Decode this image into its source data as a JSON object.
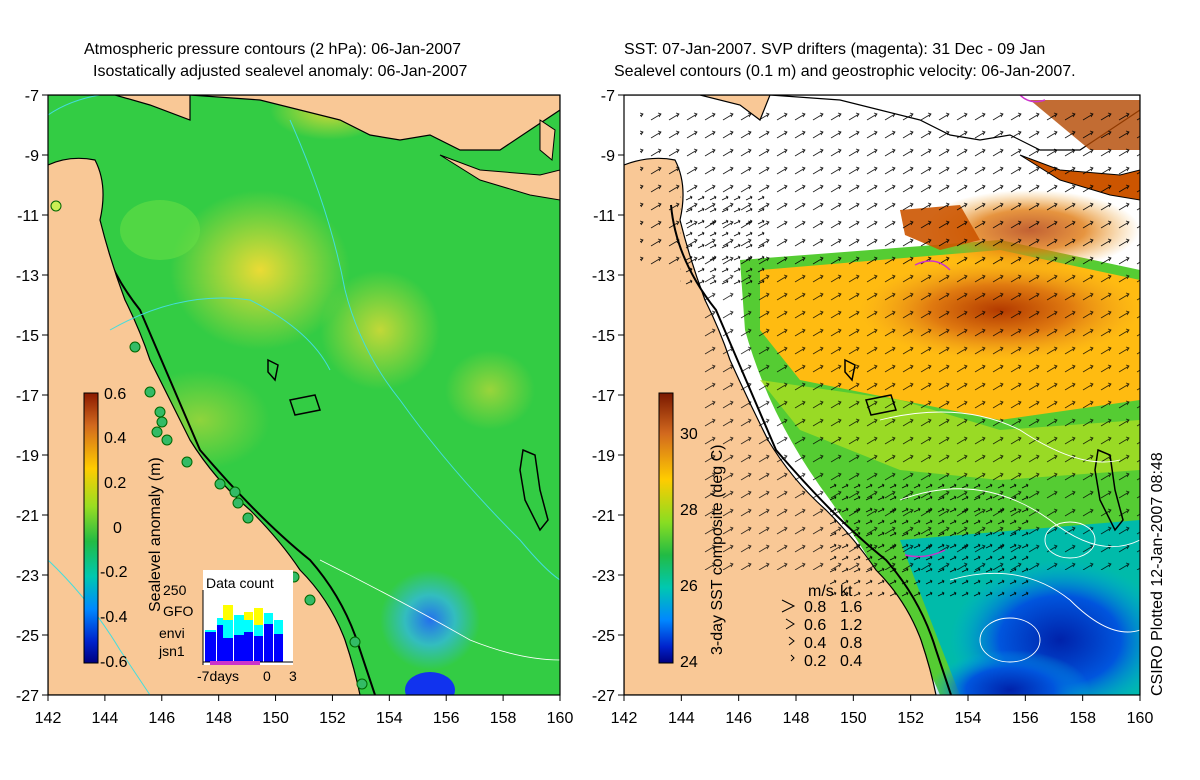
{
  "left_panel": {
    "title_line1": "Atmospheric pressure contours (2 hPa): 06-Jan-2007",
    "title_line2": "Isostatically adjusted sealevel anomaly: 06-Jan-2007",
    "colorbar_label": "Sealevel anomaly (m)",
    "colorbar_ticks": [
      "0.6",
      "0.4",
      "0.2",
      "0",
      "-0.2",
      "-0.4",
      "-0.6"
    ],
    "inset": {
      "title": "Data count",
      "y_tick": "250",
      "x_ticks": [
        "-7days",
        "0",
        "3"
      ],
      "legend": [
        {
          "label": "GFO",
          "color": "#ffff00"
        },
        {
          "label": "envi",
          "color": "#00ffff"
        },
        {
          "label": "jsn1",
          "color": "#0000ff"
        }
      ]
    }
  },
  "right_panel": {
    "title_line1": "SST: 07-Jan-2007. SVP drifters (magenta): 31 Dec - 09 Jan",
    "title_line2": "Sealevel contours (0.1 m) and geostrophic velocity: 06-Jan-2007.",
    "colorbar_label": "3-day SST composite (deg C)",
    "colorbar_ticks": [
      "30",
      "28",
      "26",
      "24"
    ],
    "velocity_key": {
      "header": [
        "m/s",
        "kt"
      ],
      "rows": [
        [
          "0.8",
          "1.6"
        ],
        [
          "0.6",
          "1.2"
        ],
        [
          "0.4",
          "0.8"
        ],
        [
          "0.2",
          "0.4"
        ]
      ]
    }
  },
  "axes": {
    "y_ticks": [
      "-7",
      "-9",
      "-11",
      "-13",
      "-15",
      "-17",
      "-19",
      "-21",
      "-23",
      "-25",
      "-27"
    ],
    "x_ticks": [
      "142",
      "144",
      "146",
      "148",
      "150",
      "152",
      "154",
      "156",
      "158",
      "160"
    ]
  },
  "credit": "CSIRO Plotted 12-Jan-2007 08:48",
  "colors": {
    "land": "#f9c896",
    "ocean_green": "#33cc33",
    "sst_warm": "#cc5500",
    "sst_cold": "#0033cc",
    "contour_cyan": "#44dddd",
    "drifter_magenta": "#cc33cc"
  }
}
